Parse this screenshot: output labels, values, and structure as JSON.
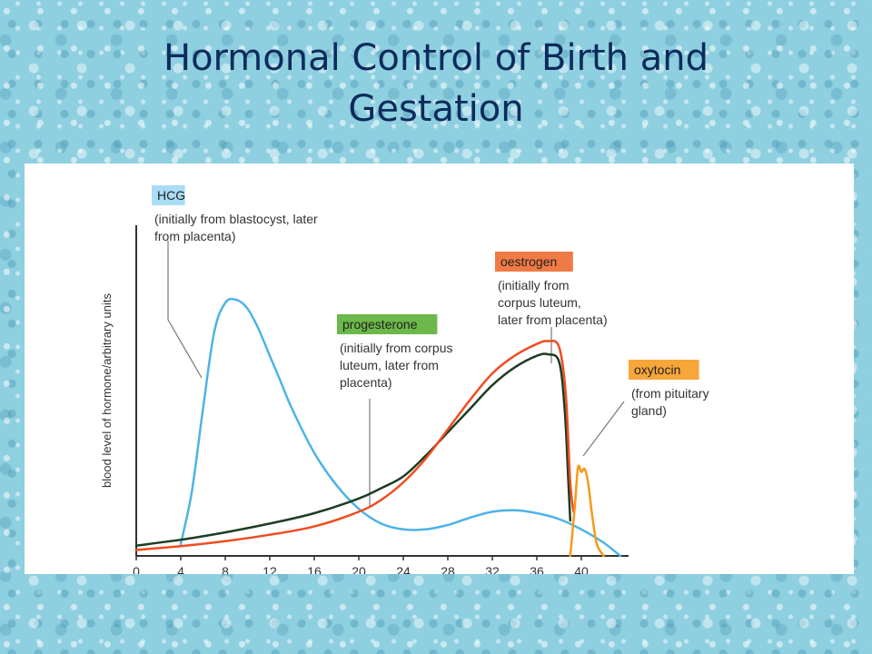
{
  "slide": {
    "title_line1": "Hormonal Control of Birth and",
    "title_line2": "Gestation"
  },
  "chart_data": {
    "type": "line",
    "title": "",
    "xlabel": "",
    "ylabel": "blood level of hormone/arbitrary units",
    "xlim": [
      0,
      44
    ],
    "ylim": [
      0,
      10
    ],
    "xticks": [
      0,
      4,
      8,
      12,
      16,
      20,
      24,
      28,
      32,
      36,
      40
    ],
    "grid": false,
    "series": [
      {
        "name": "HCG",
        "note": "(initially from blastocyst, later from placenta)",
        "color": "#4db3e6",
        "label_bg": "#a9dcf5",
        "x": [
          4,
          5,
          6,
          7,
          8,
          9,
          10,
          11,
          12,
          13,
          14,
          16,
          18,
          20,
          22,
          24,
          26,
          28,
          30,
          32,
          34,
          36,
          38,
          40,
          42,
          43.5
        ],
        "y": [
          0.4,
          2.2,
          5.0,
          7.6,
          8.6,
          8.7,
          8.4,
          7.7,
          6.8,
          5.9,
          5.0,
          3.5,
          2.4,
          1.6,
          1.1,
          0.9,
          0.9,
          1.05,
          1.3,
          1.5,
          1.55,
          1.45,
          1.25,
          0.9,
          0.45,
          0.0
        ]
      },
      {
        "name": "oestrogen",
        "note": "(initially from corpus luteum, later from placenta)",
        "color": "#ee4d20",
        "label_bg": "#f07a45",
        "x": [
          0,
          4,
          8,
          12,
          16,
          20,
          22,
          24,
          26,
          28,
          30,
          32,
          34,
          36,
          37,
          38,
          38.6,
          39,
          39.3
        ],
        "y": [
          0.2,
          0.33,
          0.5,
          0.72,
          1.0,
          1.5,
          1.9,
          2.5,
          3.3,
          4.3,
          5.3,
          6.2,
          6.8,
          7.2,
          7.3,
          7.1,
          5.5,
          2.5,
          1.5
        ]
      },
      {
        "name": "progesterone",
        "note": "(initially from corpus luteum, later from placenta)",
        "color": "#1c3d22",
        "label_bg": "#6cb84a",
        "x": [
          0,
          4,
          8,
          12,
          16,
          20,
          22,
          24,
          26,
          28,
          30,
          32,
          34,
          36,
          37,
          38,
          38.5,
          38.8,
          39
        ],
        "y": [
          0.35,
          0.55,
          0.8,
          1.1,
          1.45,
          1.95,
          2.3,
          2.7,
          3.4,
          4.2,
          5.0,
          5.8,
          6.4,
          6.8,
          6.85,
          6.6,
          5.0,
          2.8,
          1.2
        ]
      },
      {
        "name": "oxytocin",
        "note": "(from pituitary gland)",
        "color": "#f59a1a",
        "label_bg": "#f7a63a",
        "x": [
          39,
          39.4,
          39.7,
          40,
          40.3,
          40.6,
          41,
          41.4,
          42
        ],
        "y": [
          0.0,
          1.6,
          3.0,
          2.85,
          2.95,
          2.5,
          1.3,
          0.4,
          0.0
        ]
      }
    ]
  }
}
